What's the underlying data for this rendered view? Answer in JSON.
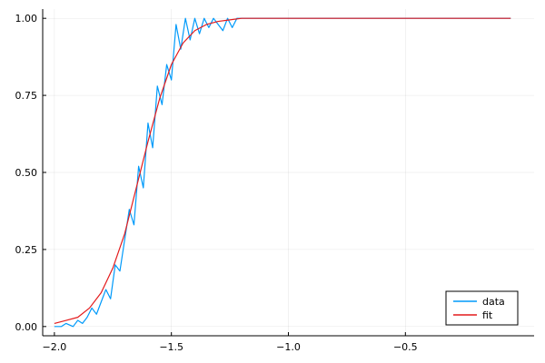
{
  "chart_data": {
    "type": "line",
    "title": "",
    "xlabel": "",
    "ylabel": "",
    "xlim": [
      -2.05,
      0.05
    ],
    "ylim": [
      -0.03,
      1.03
    ],
    "grid": true,
    "legend_position": "bottom-right",
    "x_ticks": [
      {
        "value": -2.0,
        "label": "−2.0"
      },
      {
        "value": -1.5,
        "label": "−1.5"
      },
      {
        "value": -1.0,
        "label": "−1.0"
      },
      {
        "value": -0.5,
        "label": "−0.5"
      }
    ],
    "y_ticks": [
      {
        "value": 0.0,
        "label": "0.00"
      },
      {
        "value": 0.25,
        "label": "0.25"
      },
      {
        "value": 0.5,
        "label": "0.50"
      },
      {
        "value": 0.75,
        "label": "0.75"
      },
      {
        "value": 1.0,
        "label": "1.00"
      }
    ],
    "series": [
      {
        "name": "data",
        "color": "#009AFA",
        "x": [
          -2.0,
          -1.97,
          -1.95,
          -1.92,
          -1.9,
          -1.88,
          -1.86,
          -1.84,
          -1.82,
          -1.8,
          -1.78,
          -1.76,
          -1.74,
          -1.72,
          -1.7,
          -1.68,
          -1.66,
          -1.64,
          -1.62,
          -1.6,
          -1.58,
          -1.56,
          -1.54,
          -1.52,
          -1.5,
          -1.48,
          -1.46,
          -1.44,
          -1.42,
          -1.4,
          -1.38,
          -1.36,
          -1.34,
          -1.32,
          -1.3,
          -1.28,
          -1.26,
          -1.24,
          -1.22,
          -1.2,
          -1.15,
          -1.1,
          -1.0,
          -0.8,
          -0.6,
          -0.4,
          -0.2,
          -0.05
        ],
        "y": [
          0.0,
          0.0,
          0.01,
          0.0,
          0.02,
          0.01,
          0.03,
          0.06,
          0.04,
          0.08,
          0.12,
          0.09,
          0.2,
          0.18,
          0.28,
          0.38,
          0.33,
          0.52,
          0.45,
          0.66,
          0.58,
          0.78,
          0.72,
          0.85,
          0.8,
          0.98,
          0.9,
          1.0,
          0.93,
          1.0,
          0.95,
          1.0,
          0.97,
          1.0,
          0.98,
          0.96,
          1.0,
          0.97,
          1.0,
          1.0,
          1.0,
          1.0,
          1.0,
          1.0,
          1.0,
          1.0,
          1.0,
          1.0
        ]
      },
      {
        "name": "fit",
        "color": "#E31A1C",
        "x": [
          -2.0,
          -1.95,
          -1.9,
          -1.85,
          -1.8,
          -1.75,
          -1.7,
          -1.65,
          -1.6,
          -1.55,
          -1.5,
          -1.45,
          -1.4,
          -1.35,
          -1.3,
          -1.25,
          -1.2,
          -1.1,
          -1.0,
          -0.8,
          -0.6,
          -0.4,
          -0.2,
          -0.05
        ],
        "y": [
          0.01,
          0.02,
          0.03,
          0.06,
          0.11,
          0.19,
          0.3,
          0.45,
          0.6,
          0.74,
          0.85,
          0.92,
          0.96,
          0.98,
          0.99,
          0.995,
          1.0,
          1.0,
          1.0,
          1.0,
          1.0,
          1.0,
          1.0,
          1.0
        ]
      }
    ]
  }
}
